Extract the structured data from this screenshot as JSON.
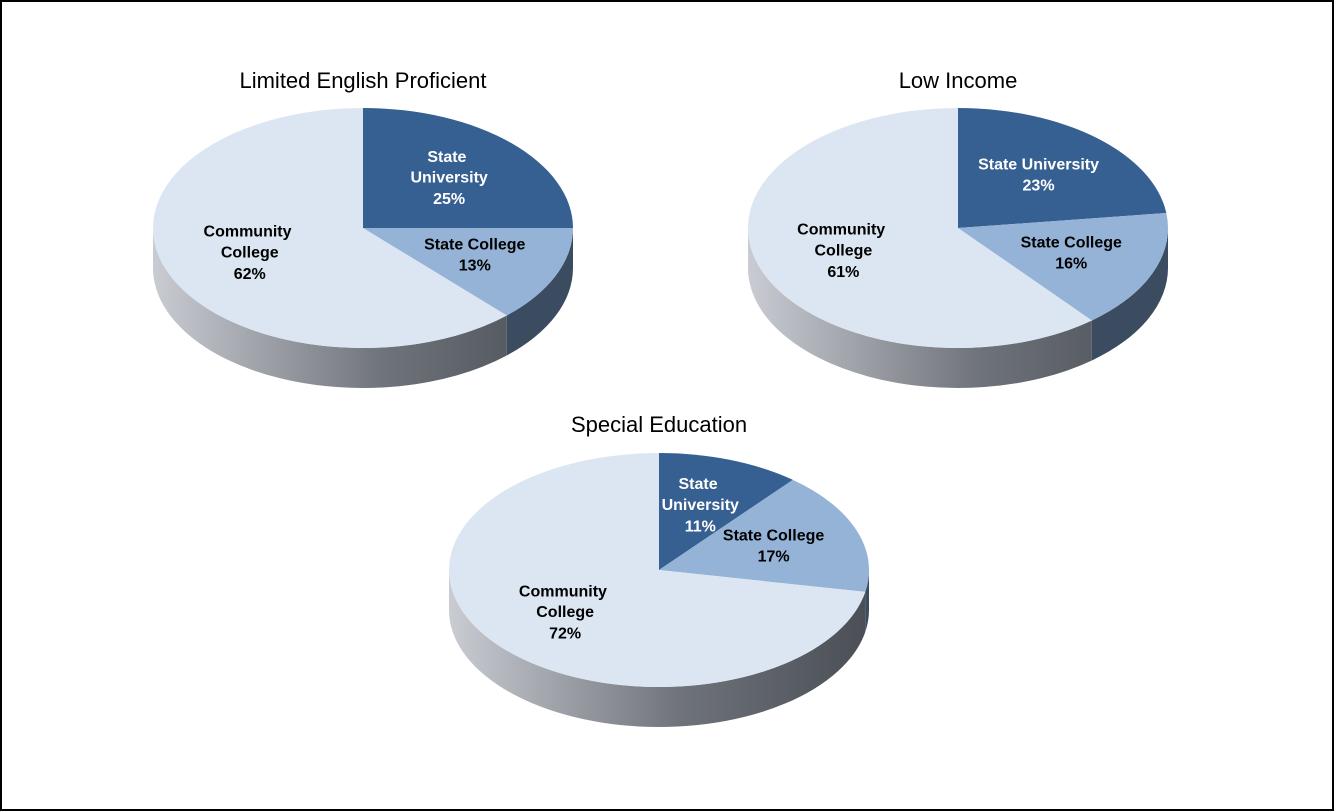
{
  "chart_data": [
    {
      "type": "pie",
      "title": "Limited English Proficient",
      "categories": [
        "State University",
        "State College",
        "Community College"
      ],
      "values": [
        25,
        13,
        62
      ],
      "value_labels": [
        "25%",
        "13%",
        "62%"
      ],
      "colors": [
        "#376092",
        "#95b3d7",
        "#dce6f2"
      ]
    },
    {
      "type": "pie",
      "title": "Low Income",
      "categories": [
        "State University",
        "State College",
        "Community College"
      ],
      "values": [
        23,
        16,
        61
      ],
      "value_labels": [
        "23%",
        "16%",
        "61%"
      ],
      "colors": [
        "#376092",
        "#95b3d7",
        "#dce6f2"
      ]
    },
    {
      "type": "pie",
      "title": "Special Education",
      "categories": [
        "State University",
        "State College",
        "Community College"
      ],
      "values": [
        11,
        17,
        72
      ],
      "value_labels": [
        "11%",
        "17%",
        "72%"
      ],
      "colors": [
        "#376092",
        "#95b3d7",
        "#dce6f2"
      ]
    }
  ]
}
